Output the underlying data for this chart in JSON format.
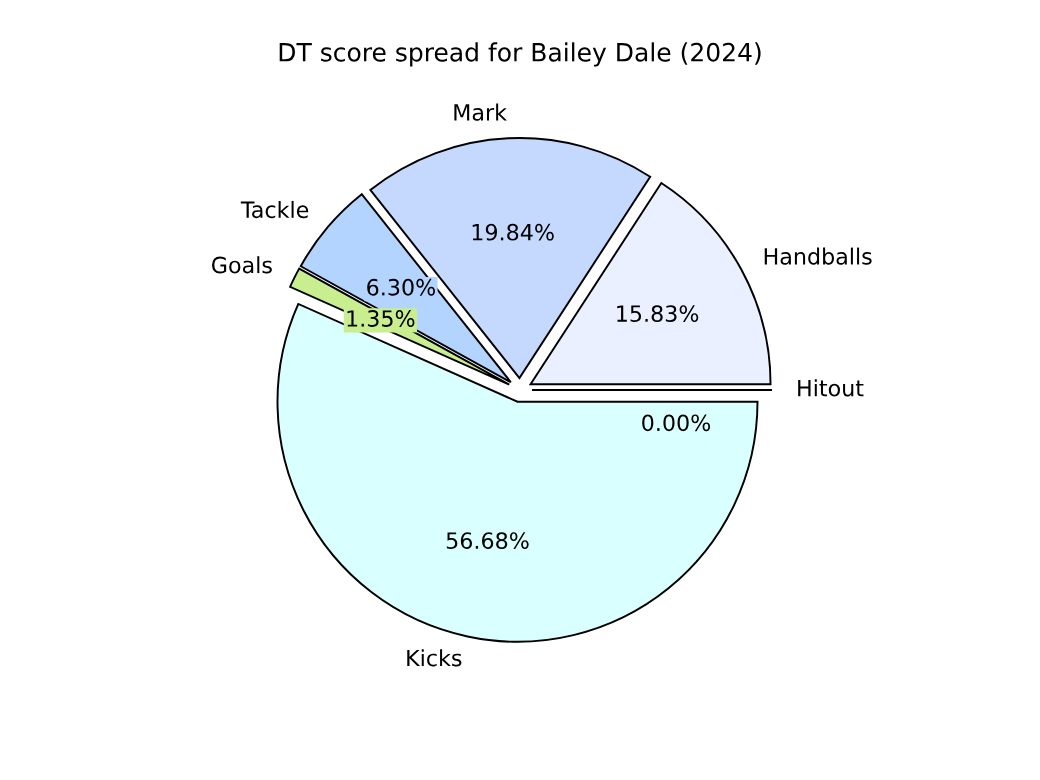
{
  "chart_data": {
    "type": "pie",
    "title": "DT score spread for Bailey Dale (2024)",
    "categories": [
      "Handballs",
      "Mark",
      "Tackle",
      "Goals",
      "Kicks",
      "Hitout"
    ],
    "values": [
      15.83,
      19.84,
      6.3,
      1.35,
      56.68,
      0.0
    ],
    "value_labels": [
      "15.83%",
      "19.84%",
      "6.30%",
      "1.35%",
      "56.68%",
      "0.00%"
    ],
    "colors": [
      "#eaf0ff",
      "#c5d9ff",
      "#b3d4ff",
      "#c8ee90",
      "#daffff",
      "#e0e0ff"
    ],
    "legend": false
  }
}
